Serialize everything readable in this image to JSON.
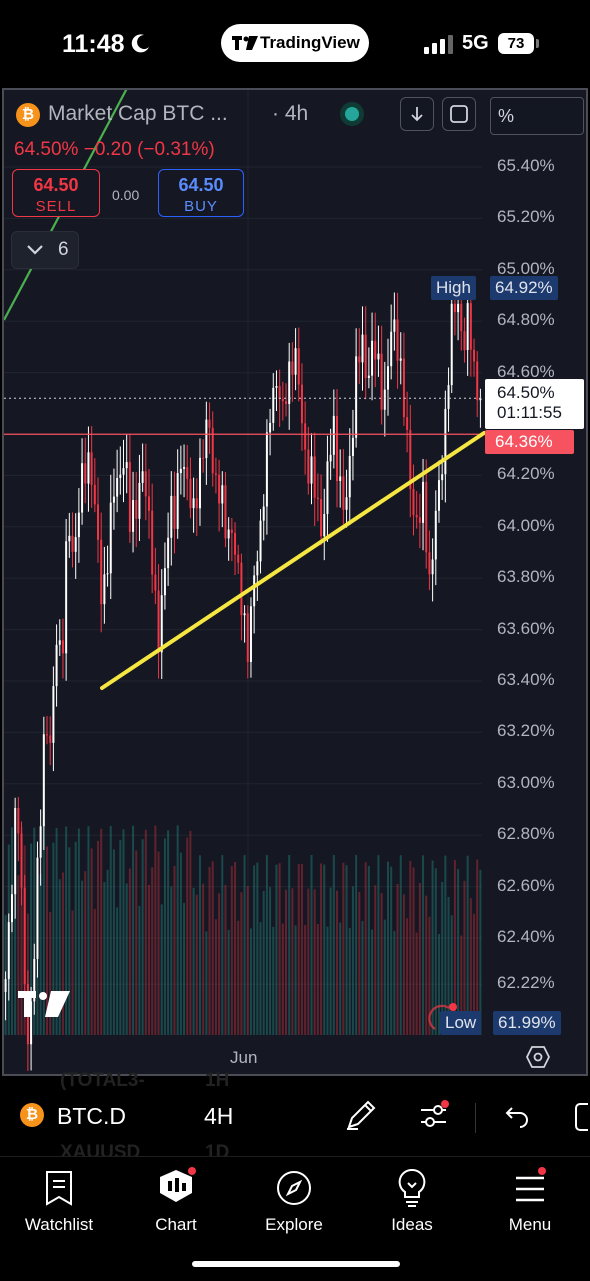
{
  "status_bar": {
    "time": "11:48",
    "app_pill": "TradingView",
    "network": "5G",
    "battery": "73"
  },
  "chart": {
    "symbol_name": "Market Cap BTC ...",
    "interval": "· 4h",
    "price_change": "64.50%  −0.20 (−0.31%)",
    "sell_price": "64.50",
    "sell_label": "SELL",
    "buy_price": "64.50",
    "buy_label": "BUY",
    "spread": "0.00",
    "indicators_count": "6",
    "scale_mode": "%",
    "high_label": "High",
    "high_value": "64.92%",
    "low_label": "Low",
    "low_value": "61.99%",
    "current_price": "64.50%",
    "countdown": "01:11:55",
    "line_level": "64.36%",
    "x_axis_label": "Jun",
    "colors": {
      "up": "#ffffff",
      "down": "#f23645",
      "trendline": "#f5e642",
      "green_line": "#4caf50",
      "volume": "#26a69a"
    }
  },
  "chart_data": {
    "type": "candlestick",
    "y_axis_ticks": [
      "65.40%",
      "65.20%",
      "65.00%",
      "64.80%",
      "64.60%",
      "64.20%",
      "64.00%",
      "63.80%",
      "63.60%",
      "63.40%",
      "63.20%",
      "63.00%",
      "62.80%",
      "62.60%",
      "62.40%",
      "62.22%"
    ],
    "ylim": [
      62.0,
      65.45
    ],
    "x_tick_labels": [
      "Jun"
    ],
    "close_series": [
      62.2,
      62.6,
      63.0,
      62.4,
      62.0,
      62.3,
      62.8,
      63.3,
      63.1,
      63.6,
      63.5,
      64.0,
      63.9,
      64.1,
      64.2,
      64.3,
      64.0,
      63.7,
      63.9,
      64.1,
      64.2,
      64.3,
      64.0,
      64.1,
      64.2,
      64.1,
      63.9,
      63.5,
      63.8,
      64.1,
      64.0,
      64.3,
      64.2,
      64.0,
      64.2,
      64.3,
      64.4,
      64.2,
      64.1,
      64.0,
      64.0,
      63.8,
      63.7,
      63.5,
      63.8,
      64.0,
      64.2,
      64.5,
      64.6,
      64.4,
      64.6,
      64.7,
      64.5,
      64.3,
      64.2,
      64.1,
      64.0,
      64.2,
      64.4,
      64.2,
      64.0,
      64.3,
      64.6,
      64.7,
      64.6,
      64.7,
      64.6,
      64.5,
      64.7,
      64.8,
      64.6,
      64.3,
      64.1,
      64.0,
      64.1,
      63.8,
      64.0,
      64.2,
      64.5,
      64.8,
      64.9,
      64.7,
      64.8,
      64.6,
      64.5
    ],
    "high": 64.92,
    "low": 61.99,
    "last": 64.5,
    "horizontal_line": 64.36,
    "trendline_from": {
      "bar": 14,
      "price": 63.35
    },
    "trendline_to": {
      "bar": 88,
      "price": 64.36
    }
  },
  "toolbar": {
    "symbol": "BTC.D",
    "interval": "4H",
    "ghost_1": "(TOTAL3-",
    "ghost_1b": "1H",
    "ghost_2": "XAUUSD",
    "ghost_2b": "1D"
  },
  "nav": {
    "items": [
      {
        "label": "Watchlist"
      },
      {
        "label": "Chart"
      },
      {
        "label": "Explore"
      },
      {
        "label": "Ideas"
      },
      {
        "label": "Menu"
      }
    ]
  }
}
